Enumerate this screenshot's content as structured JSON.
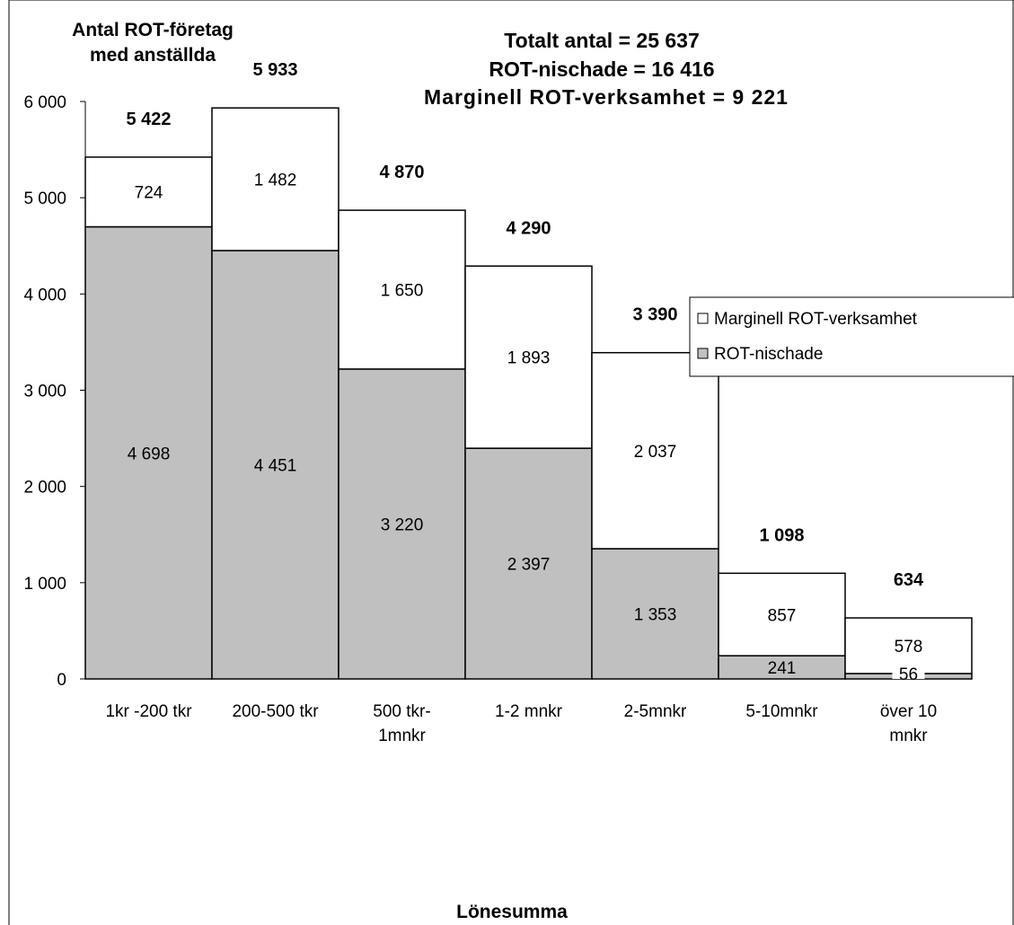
{
  "chart_data": {
    "type": "bar",
    "title": "",
    "annotations": {
      "y_title_line1": "Antal ROT-företag",
      "y_title_line2": "med anställda",
      "totals_line1": "Totalt antal = 25 637",
      "totals_line2": "ROT-nischade = 16 416",
      "totals_line3": "Marginell ROT-verksamhet = 9 221"
    },
    "xlabel": "Lönesumma",
    "ylabel": "",
    "ylim": [
      0,
      6000
    ],
    "yticks": [
      "0",
      "1 000",
      "2 000",
      "3 000",
      "4 000",
      "5 000",
      "6 000"
    ],
    "categories": [
      [
        "1kr -200 tkr"
      ],
      [
        "200-500 tkr"
      ],
      [
        "500 tkr-",
        "1mnkr"
      ],
      [
        "1-2 mnkr"
      ],
      [
        "2-5mnkr"
      ],
      [
        "5-10mnkr"
      ],
      [
        "över 10",
        "mnkr"
      ]
    ],
    "series": [
      {
        "name": "ROT-nischade",
        "color": "#c0c0c0",
        "values": [
          4698,
          4451,
          3220,
          2397,
          1353,
          241,
          56
        ],
        "labels": [
          "4 698",
          "4 451",
          "3 220",
          "2 397",
          "1 353",
          "241",
          "56"
        ]
      },
      {
        "name": "Marginell ROT-verksamhet",
        "color": "#ffffff",
        "values": [
          724,
          1482,
          1650,
          1893,
          2037,
          857,
          578
        ],
        "labels": [
          "724",
          "1 482",
          "1 650",
          "1 893",
          "2 037",
          "857",
          "578"
        ]
      }
    ],
    "totals": [
      5422,
      5933,
      4870,
      4290,
      3390,
      1098,
      634
    ],
    "total_labels": [
      "5 422",
      "5 933",
      "4 870",
      "4 290",
      "3 390",
      "1 098",
      "634"
    ],
    "legend": {
      "position": "right",
      "items": [
        "Marginell ROT-verksamhet",
        "ROT-nischade"
      ]
    },
    "grid": false
  }
}
